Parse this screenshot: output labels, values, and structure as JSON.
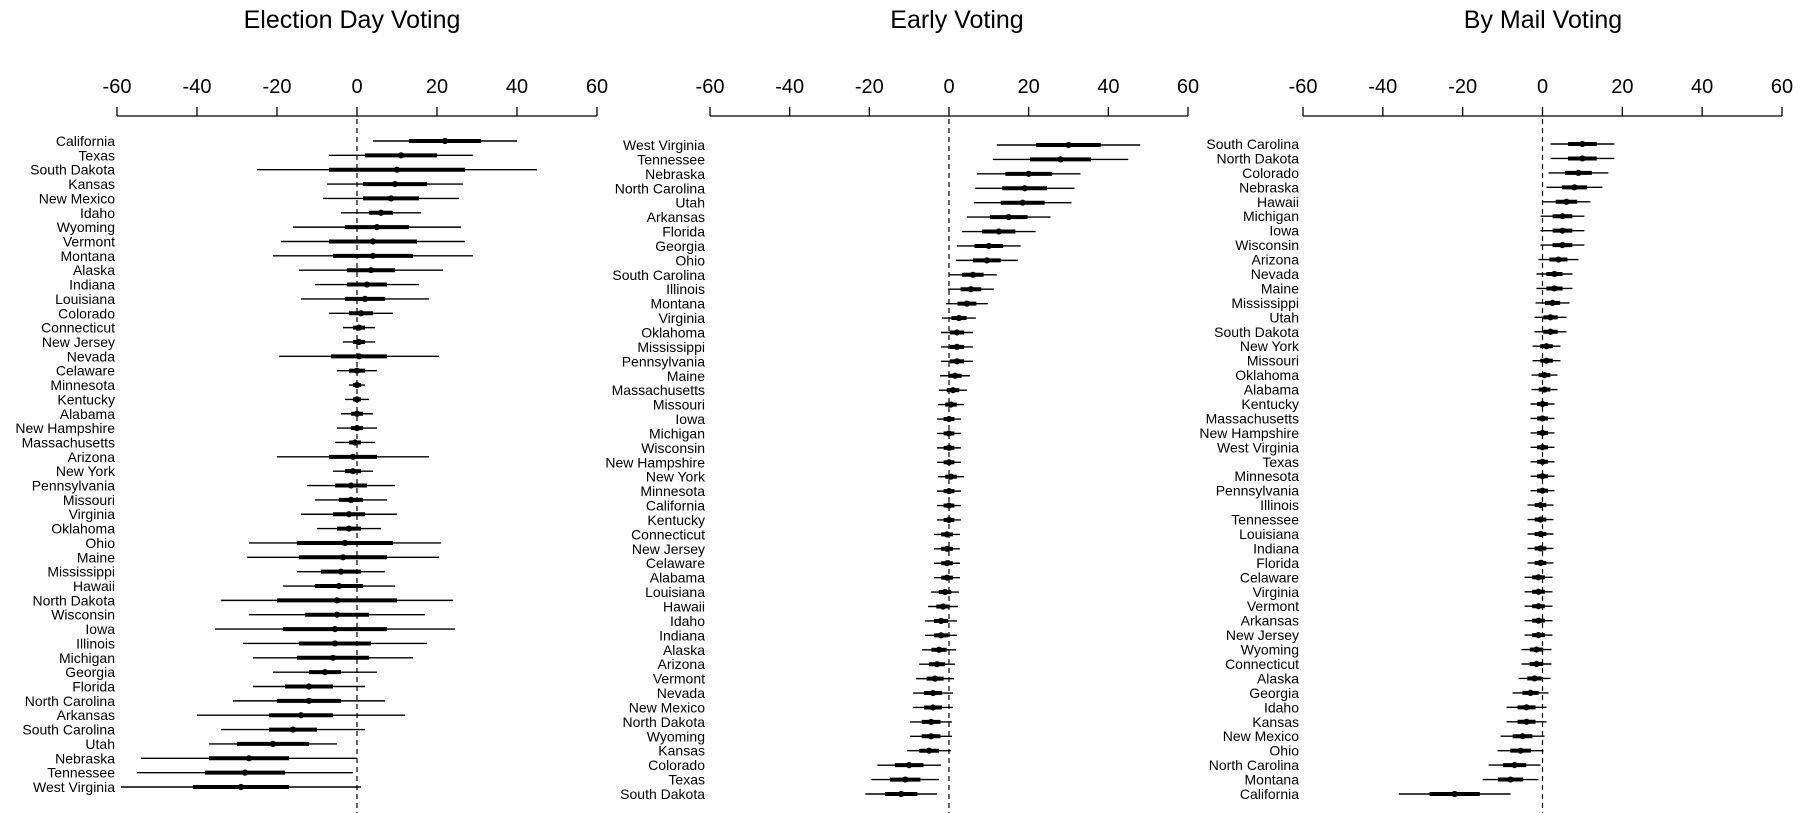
{
  "chart_data": [
    {
      "type": "forest",
      "title": "Election Day Voting",
      "xlim": [
        -60,
        60
      ],
      "x_ticks": [
        "-60",
        "-40",
        "-20",
        "0",
        "20",
        "40",
        "60"
      ],
      "reference_line": 0,
      "grid": false,
      "states": [
        "California",
        "Texas",
        "South Dakota",
        "Kansas",
        "New Mexico",
        "Idaho",
        "Wyoming",
        "Vermont",
        "Montana",
        "Alaska",
        "Indiana",
        "Louisiana",
        "Colorado",
        "Connecticut",
        "New Jersey",
        "Nevada",
        "Celaware",
        "Minnesota",
        "Kentucky",
        "Alabama",
        "New Hampshire",
        "Massachusetts",
        "Arizona",
        "New York",
        "Pennsylvania",
        "Missouri",
        "Virginia",
        "Oklahoma",
        "Ohio",
        "Maine",
        "Mississippi",
        "Hawaii",
        "North Dakota",
        "Wisconsin",
        "Iowa",
        "Illinois",
        "Michigan",
        "Georgia",
        "Florida",
        "North Carolina",
        "Arkansas",
        "South Carolina",
        "Utah",
        "Nebraska",
        "Tennessee",
        "West Virginia"
      ],
      "estimates": [
        22,
        11,
        10,
        9.5,
        8.5,
        6,
        5,
        4,
        4,
        3.5,
        2.5,
        2,
        1,
        0.5,
        0.5,
        0.5,
        0,
        0,
        0,
        0,
        0,
        -0.5,
        -1,
        -1,
        -1.5,
        -1.5,
        -2,
        -2,
        -3,
        -3.5,
        -4,
        -4.5,
        -5,
        -5,
        -5.5,
        -5.5,
        -6,
        -8,
        -12,
        -12,
        -14,
        -16,
        -21,
        -27,
        -28,
        -29
      ],
      "ci_inner": [
        9,
        9,
        17,
        8,
        7,
        3,
        8,
        11,
        10,
        6,
        5,
        5,
        3,
        1.5,
        1.5,
        7,
        2,
        1,
        1,
        1.5,
        1.5,
        1.5,
        6,
        2,
        4,
        3,
        4,
        3,
        12,
        11,
        5,
        6,
        15,
        8,
        13,
        9,
        9,
        4,
        6,
        8,
        8,
        6,
        9,
        10,
        10,
        12
      ],
      "ci_outer": [
        18,
        18,
        35,
        17,
        17,
        10,
        21,
        23,
        25,
        18,
        13,
        16,
        8,
        4,
        4,
        20,
        5,
        2,
        3,
        4,
        5,
        5,
        19,
        5,
        11,
        9,
        12,
        8,
        24,
        24,
        11,
        14,
        29,
        22,
        30,
        23,
        20,
        13,
        14,
        19,
        26,
        18,
        16,
        27,
        27,
        30
      ]
    },
    {
      "type": "forest",
      "title": "Early Voting",
      "xlim": [
        -60,
        60
      ],
      "x_ticks": [
        "-60",
        "-40",
        "-20",
        "0",
        "20",
        "40",
        "60"
      ],
      "reference_line": 0,
      "grid": false,
      "states": [
        "West Virginia",
        "Tennessee",
        "Nebraska",
        "North Carolina",
        "Utah",
        "Arkansas",
        "Florida",
        "Georgia",
        "Ohio",
        "South Carolina",
        "Illinois",
        "Montana",
        "Virginia",
        "Oklahoma",
        "Mississippi",
        "Pennsylvania",
        "Maine",
        "Massachusetts",
        "Missouri",
        "Iowa",
        "Michigan",
        "Wisconsin",
        "New Hampshire",
        "New York",
        "Minnesota",
        "California",
        "Kentucky",
        "Connecticut",
        "New Jersey",
        "Celaware",
        "Alabama",
        "Louisiana",
        "Hawaii",
        "Idaho",
        "Indiana",
        "Alaska",
        "Arizona",
        "Vermont",
        "Nevada",
        "New Mexico",
        "North Dakota",
        "Wyoming",
        "Kansas",
        "Colorado",
        "Texas",
        "South Dakota"
      ],
      "estimates": [
        30,
        28,
        20,
        19,
        18.5,
        15,
        12.5,
        10,
        9.5,
        6,
        5.5,
        4.5,
        2.5,
        2,
        2,
        2,
        1.5,
        1,
        0.5,
        0,
        0,
        0,
        0,
        0.5,
        0,
        0,
        0,
        -0.5,
        -0.5,
        -0.5,
        -0.5,
        -1,
        -1.5,
        -2,
        -2,
        -2.5,
        -3,
        -3.5,
        -4,
        -4,
        -4.5,
        -4.5,
        -5,
        -10,
        -11,
        -12
      ]
    },
    {
      "type": "forest",
      "title": "By Mail Voting",
      "xlim": [
        -60,
        60
      ],
      "x_ticks": [
        "-60",
        "-40",
        "-20",
        "0",
        "20",
        "40",
        "60"
      ],
      "reference_line": 0,
      "grid": false,
      "states": [
        "South Carolina",
        "North Dakota",
        "Colorado",
        "Nebraska",
        "Hawaii",
        "Michigan",
        "Iowa",
        "Wisconsin",
        "Arizona",
        "Nevada",
        "Maine",
        "Mississippi",
        "Utah",
        "South Dakota",
        "New York",
        "Missouri",
        "Oklahoma",
        "Alabama",
        "Kentucky",
        "Massachusetts",
        "New Hampshire",
        "West Virginia",
        "Texas",
        "Minnesota",
        "Pennsylvania",
        "Illinois",
        "Tennessee",
        "Louisiana",
        "Indiana",
        "Florida",
        "Celaware",
        "Virginia",
        "Vermont",
        "Arkansas",
        "New Jersey",
        "Wyoming",
        "Connecticut",
        "Alaska",
        "Georgia",
        "Idaho",
        "Kansas",
        "New Mexico",
        "Ohio",
        "North Carolina",
        "Montana",
        "California"
      ],
      "estimates": [
        10,
        10,
        9,
        8,
        6,
        5,
        5,
        5,
        4,
        3,
        3,
        2.5,
        2,
        2,
        1,
        1,
        0.5,
        0.5,
        0,
        0,
        0,
        0,
        0,
        0,
        0,
        -0.5,
        -0.5,
        -0.5,
        -0.5,
        -0.5,
        -1,
        -1,
        -1,
        -1,
        -1,
        -1.5,
        -1.5,
        -2,
        -3,
        -4,
        -4,
        -5,
        -5.5,
        -7,
        -8,
        -22
      ]
    }
  ]
}
